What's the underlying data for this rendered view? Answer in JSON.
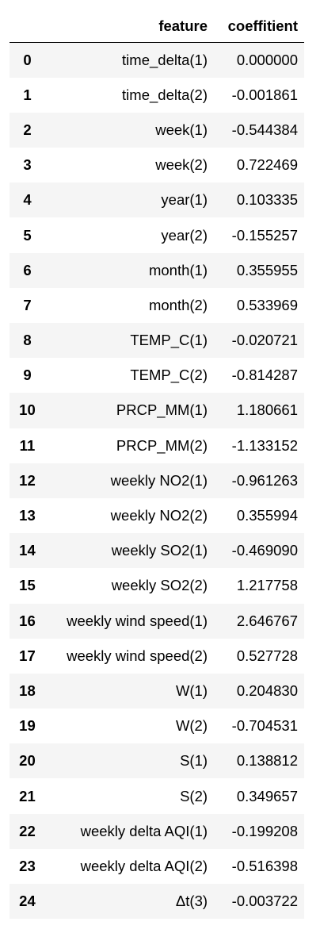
{
  "table": {
    "columns": {
      "index": "",
      "feature": "feature",
      "coefficient": "coeffitient"
    },
    "rows": [
      {
        "index": "0",
        "feature": "time_delta(1)",
        "coefficient": "0.000000"
      },
      {
        "index": "1",
        "feature": "time_delta(2)",
        "coefficient": "-0.001861"
      },
      {
        "index": "2",
        "feature": "week(1)",
        "coefficient": "-0.544384"
      },
      {
        "index": "3",
        "feature": "week(2)",
        "coefficient": "0.722469"
      },
      {
        "index": "4",
        "feature": "year(1)",
        "coefficient": "0.103335"
      },
      {
        "index": "5",
        "feature": "year(2)",
        "coefficient": "-0.155257"
      },
      {
        "index": "6",
        "feature": "month(1)",
        "coefficient": "0.355955"
      },
      {
        "index": "7",
        "feature": "month(2)",
        "coefficient": "0.533969"
      },
      {
        "index": "8",
        "feature": "TEMP_C(1)",
        "coefficient": "-0.020721"
      },
      {
        "index": "9",
        "feature": "TEMP_C(2)",
        "coefficient": "-0.814287"
      },
      {
        "index": "10",
        "feature": "PRCP_MM(1)",
        "coefficient": "1.180661"
      },
      {
        "index": "11",
        "feature": "PRCP_MM(2)",
        "coefficient": "-1.133152"
      },
      {
        "index": "12",
        "feature": "weekly NO2(1)",
        "coefficient": "-0.961263"
      },
      {
        "index": "13",
        "feature": "weekly NO2(2)",
        "coefficient": "0.355994"
      },
      {
        "index": "14",
        "feature": "weekly SO2(1)",
        "coefficient": "-0.469090"
      },
      {
        "index": "15",
        "feature": "weekly SO2(2)",
        "coefficient": "1.217758"
      },
      {
        "index": "16",
        "feature": "weekly wind speed(1)",
        "coefficient": "2.646767"
      },
      {
        "index": "17",
        "feature": "weekly wind speed(2)",
        "coefficient": "0.527728"
      },
      {
        "index": "18",
        "feature": "W(1)",
        "coefficient": "0.204830"
      },
      {
        "index": "19",
        "feature": "W(2)",
        "coefficient": "-0.704531"
      },
      {
        "index": "20",
        "feature": "S(1)",
        "coefficient": "0.138812"
      },
      {
        "index": "21",
        "feature": "S(2)",
        "coefficient": "0.349657"
      },
      {
        "index": "22",
        "feature": "weekly delta AQI(1)",
        "coefficient": "-0.199208"
      },
      {
        "index": "23",
        "feature": "weekly delta AQI(2)",
        "coefficient": "-0.516398"
      },
      {
        "index": "24",
        "feature": "Δt(3)",
        "coefficient": "-0.003722"
      }
    ]
  }
}
